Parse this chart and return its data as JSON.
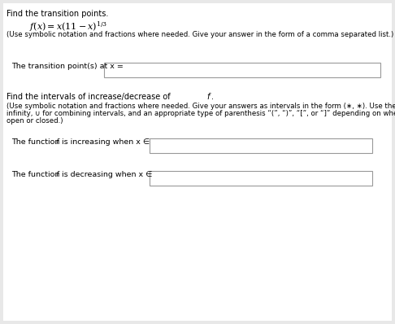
{
  "bg_color": "#e8e8e8",
  "page_bg": "#ffffff",
  "text_color": "#000000",
  "box_edge_color": "#999999",
  "box_fill": "#ffffff",
  "title1": "Find the transition points.",
  "function_math": "$f(x) = x(11-x)^{1/3}$",
  "instruction1": "(Use symbolic notation and fractions where needed. Give your answer in the form of a comma separated list.)",
  "label_transition": "The transition point(s) at x =",
  "section2_title_normal": "Find the intervals of increase/decrease of ",
  "section2_title_italic": "f",
  "section2_title_end": ".",
  "instr2_line1": "(Use symbolic notation and fractions where needed. Give your answers as intervals in the form (∗, ∗). Use the symbol ∞ for",
  "instr2_line2": "infinity, ∪ for combining intervals, and an appropriate type of parenthesis “(”, “)”, “[”, or “]” depending on whether the interval is",
  "instr2_line3": "open or closed.)",
  "label_increasing_pre": "The function ",
  "label_increasing_f": "f",
  "label_increasing_post": " is increasing when x ∈",
  "label_decreasing_pre": "The function ",
  "label_decreasing_f": "f",
  "label_decreasing_post": " is decreasing when x ∈",
  "fs_title": 7.0,
  "fs_func": 8.0,
  "fs_instr": 6.2,
  "fs_label": 6.8
}
